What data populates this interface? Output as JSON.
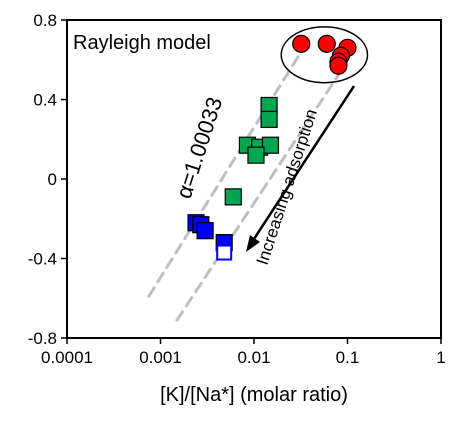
{
  "chart_data": {
    "type": "scatter",
    "title": "Rayleigh model",
    "xlabel": "[K]/[Na*] (molar ratio)",
    "ylabel": "",
    "x_scale": "log",
    "xlim": [
      0.0001,
      1
    ],
    "ylim": [
      -0.8,
      0.8
    ],
    "x_ticks": [
      0.0001,
      0.001,
      0.01,
      0.1,
      1
    ],
    "x_tick_labels": [
      "0.0001",
      "0.001",
      "0.01",
      "0.1",
      "1"
    ],
    "y_ticks": [
      -0.8,
      -0.4,
      0,
      0.4,
      0.8
    ],
    "y_tick_labels": [
      "-0.8",
      "-0.4",
      "0",
      "0.4",
      "0.8"
    ],
    "grid": false,
    "legend": "none",
    "series": [
      {
        "marker": "circle",
        "color": "#ff0000",
        "filled": true,
        "points": [
          {
            "x": 0.032,
            "y": 0.68
          },
          {
            "x": 0.06,
            "y": 0.68
          },
          {
            "x": 0.1,
            "y": 0.66
          },
          {
            "x": 0.085,
            "y": 0.62
          },
          {
            "x": 0.08,
            "y": 0.59
          },
          {
            "x": 0.08,
            "y": 0.57
          }
        ]
      },
      {
        "marker": "square",
        "color": "#00a650",
        "filled": true,
        "points": [
          {
            "x": 0.0145,
            "y": 0.37
          },
          {
            "x": 0.0145,
            "y": 0.3
          },
          {
            "x": 0.0085,
            "y": 0.17
          },
          {
            "x": 0.0115,
            "y": 0.16
          },
          {
            "x": 0.015,
            "y": 0.17
          },
          {
            "x": 0.0105,
            "y": 0.12
          },
          {
            "x": 0.006,
            "y": -0.09
          }
        ]
      },
      {
        "marker": "square",
        "color": "#0000ff",
        "filled": true,
        "points": [
          {
            "x": 0.0024,
            "y": -0.22
          },
          {
            "x": 0.0027,
            "y": -0.23
          },
          {
            "x": 0.003,
            "y": -0.26
          },
          {
            "x": 0.0048,
            "y": -0.32
          }
        ]
      },
      {
        "marker": "square",
        "color": "#0000ff",
        "filled": false,
        "points": [
          {
            "x": 0.0048,
            "y": -0.37
          }
        ]
      }
    ],
    "model_lines": [
      {
        "x": [
          0.00075,
          0.035
        ],
        "y": [
          -0.59,
          0.67
        ],
        "style": "dashed",
        "color": "#bfbfbf"
      },
      {
        "x": [
          0.0015,
          0.09
        ],
        "y": [
          -0.71,
          0.56
        ],
        "style": "dashed",
        "color": "#bfbfbf"
      }
    ],
    "annotations": {
      "alpha_label": "α=1.00033",
      "trend_label": "Increasing adsorption"
    }
  }
}
